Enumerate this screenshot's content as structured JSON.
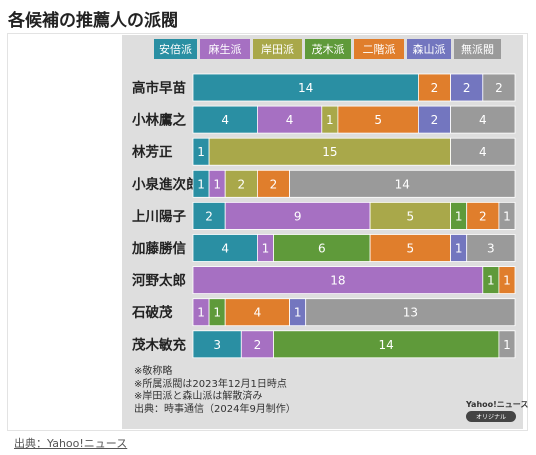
{
  "page": {
    "heading": "各候補の推薦人の派閥",
    "source_link": "出典：Yahoo!ニュース"
  },
  "chart_data": {
    "type": "bar",
    "orientation": "horizontal",
    "stacked": true,
    "title": "",
    "xlabel": "",
    "ylabel": "",
    "xlim": [
      0,
      20
    ],
    "legend_position": "top",
    "grid": false,
    "categories": [
      "高市早苗",
      "小林鷹之",
      "林芳正",
      "小泉進次郎",
      "上川陽子",
      "加藤勝信",
      "河野太郎",
      "石破茂",
      "茂木敏充"
    ],
    "series": [
      {
        "name": "安倍派",
        "color": "#2a8fa3",
        "values": [
          14,
          4,
          1,
          1,
          2,
          4,
          0,
          0,
          3
        ]
      },
      {
        "name": "麻生派",
        "color": "#a670c2",
        "values": [
          0,
          4,
          0,
          1,
          9,
          1,
          18,
          1,
          2
        ]
      },
      {
        "name": "岸田派",
        "color": "#a9a84a",
        "values": [
          0,
          1,
          15,
          2,
          5,
          0,
          0,
          0,
          0
        ]
      },
      {
        "name": "茂木派",
        "color": "#5f9a3a",
        "values": [
          0,
          0,
          0,
          0,
          1,
          6,
          1,
          1,
          14
        ]
      },
      {
        "name": "二階派",
        "color": "#e07e2c",
        "values": [
          2,
          5,
          0,
          2,
          2,
          5,
          1,
          4,
          0
        ]
      },
      {
        "name": "森山派",
        "color": "#7376bf",
        "values": [
          2,
          2,
          0,
          0,
          0,
          1,
          0,
          1,
          0
        ]
      },
      {
        "name": "無派閥",
        "color": "#9a9a9a",
        "values": [
          2,
          4,
          4,
          14,
          1,
          3,
          0,
          13,
          1
        ]
      }
    ],
    "notes": [
      "※敬称略",
      "※所属派閥は2023年12月1日時点",
      "※岸田派と森山派は解散済み",
      "出典：時事通信（2024年9月制作）"
    ],
    "brand": {
      "name": "Yahoo!ニュース",
      "tag": "オリジナル"
    }
  }
}
